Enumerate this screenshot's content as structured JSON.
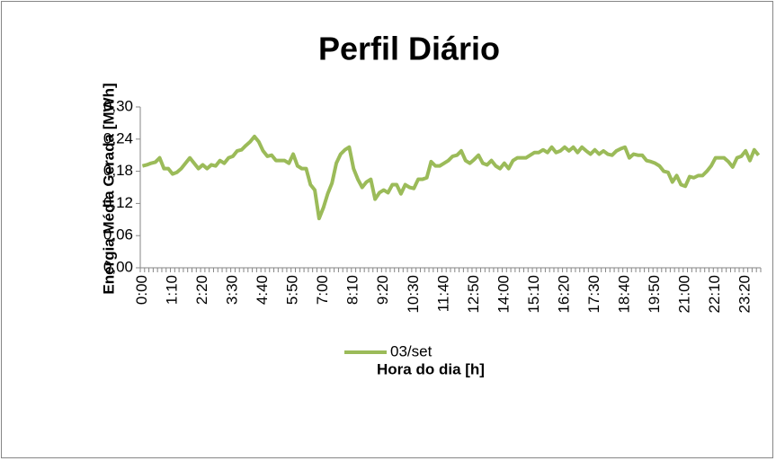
{
  "chart_data": {
    "type": "line",
    "title": "Perfil Diário",
    "x_label": "Hora do dia [h]",
    "y_label": "Energia Média Gerada [MWh]",
    "categories": [
      "0:00",
      null,
      null,
      null,
      null,
      null,
      null,
      "1:10",
      null,
      null,
      null,
      null,
      null,
      null,
      "2:20",
      null,
      null,
      null,
      null,
      null,
      null,
      "3:30",
      null,
      null,
      null,
      null,
      null,
      null,
      "4:40",
      null,
      null,
      null,
      null,
      null,
      null,
      "5:50",
      null,
      null,
      null,
      null,
      null,
      null,
      "7:00",
      null,
      null,
      null,
      null,
      null,
      null,
      "8:10",
      null,
      null,
      null,
      null,
      null,
      null,
      "9:20",
      null,
      null,
      null,
      null,
      null,
      null,
      "10:30",
      null,
      null,
      null,
      null,
      null,
      null,
      "11:40",
      null,
      null,
      null,
      null,
      null,
      null,
      "12:50",
      null,
      null,
      null,
      null,
      null,
      null,
      "14:00",
      null,
      null,
      null,
      null,
      null,
      null,
      "15:10",
      null,
      null,
      null,
      null,
      null,
      null,
      "16:20",
      null,
      null,
      null,
      null,
      null,
      null,
      "17:30",
      null,
      null,
      null,
      null,
      null,
      null,
      "18:40",
      null,
      null,
      null,
      null,
      null,
      null,
      "19:50",
      null,
      null,
      null,
      null,
      null,
      null,
      "21:00",
      null,
      null,
      null,
      null,
      null,
      null,
      "22:10",
      null,
      null,
      null,
      null,
      null,
      null,
      "23:20",
      null,
      null,
      null
    ],
    "series": [
      {
        "name": "03/set",
        "color": "#9bbb59",
        "values": [
          0.19,
          0.192,
          0.195,
          0.197,
          0.205,
          0.185,
          0.185,
          0.175,
          0.178,
          0.185,
          0.195,
          0.205,
          0.195,
          0.185,
          0.192,
          0.185,
          0.192,
          0.19,
          0.2,
          0.195,
          0.205,
          0.208,
          0.218,
          0.22,
          0.228,
          0.235,
          0.245,
          0.235,
          0.218,
          0.208,
          0.21,
          0.2,
          0.2,
          0.2,
          0.195,
          0.212,
          0.19,
          0.185,
          0.185,
          0.155,
          0.145,
          0.092,
          0.112,
          0.138,
          0.158,
          0.195,
          0.212,
          0.22,
          0.225,
          0.185,
          0.165,
          0.15,
          0.16,
          0.165,
          0.128,
          0.14,
          0.145,
          0.14,
          0.155,
          0.155,
          0.138,
          0.155,
          0.15,
          0.148,
          0.165,
          0.165,
          0.168,
          0.198,
          0.19,
          0.19,
          0.195,
          0.2,
          0.208,
          0.21,
          0.218,
          0.2,
          0.195,
          0.202,
          0.21,
          0.195,
          0.192,
          0.2,
          0.19,
          0.185,
          0.195,
          0.185,
          0.2,
          0.205,
          0.205,
          0.205,
          0.21,
          0.215,
          0.215,
          0.22,
          0.215,
          0.225,
          0.215,
          0.218,
          0.225,
          0.218,
          0.225,
          0.215,
          0.225,
          0.218,
          0.212,
          0.22,
          0.212,
          0.218,
          0.212,
          0.21,
          0.218,
          0.222,
          0.225,
          0.205,
          0.212,
          0.21,
          0.21,
          0.2,
          0.198,
          0.195,
          0.19,
          0.18,
          0.178,
          0.16,
          0.172,
          0.155,
          0.152,
          0.17,
          0.168,
          0.172,
          0.172,
          0.18,
          0.19,
          0.205,
          0.205,
          0.205,
          0.198,
          0.188,
          0.205,
          0.208,
          0.218,
          0.2,
          0.22,
          0.21
        ]
      }
    ],
    "ylim": [
      0,
      0.3
    ],
    "yticks": [
      {
        "value": 0,
        "label": "0,00"
      },
      {
        "value": 0.06,
        "label": "0,06"
      },
      {
        "value": 0.12,
        "label": "0,12"
      },
      {
        "value": 0.18,
        "label": "0,18"
      },
      {
        "value": 0.24,
        "label": "0,24"
      },
      {
        "value": 0.3,
        "label": "0,30"
      }
    ],
    "grid": false,
    "legend": "bottom"
  }
}
